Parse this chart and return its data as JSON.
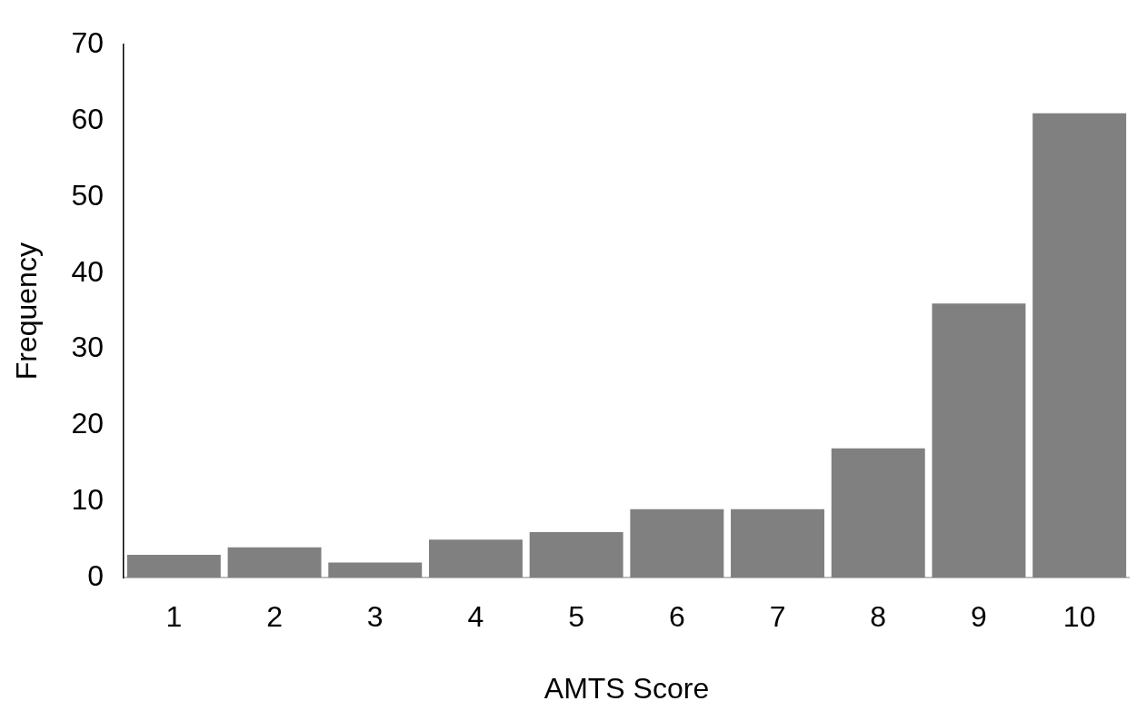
{
  "chart_data": {
    "type": "bar",
    "xlabel": "AMTS Score",
    "ylabel": "Frequency",
    "categories": [
      "1",
      "2",
      "3",
      "4",
      "5",
      "6",
      "7",
      "8",
      "9",
      "10"
    ],
    "values": [
      3,
      4,
      2,
      5,
      6,
      9,
      9,
      17,
      36,
      61
    ],
    "color": "#808080",
    "ylim": [
      0,
      70
    ],
    "yticks": [
      0,
      10,
      20,
      30,
      40,
      50,
      60,
      70
    ],
    "grid": false,
    "legend": false
  }
}
